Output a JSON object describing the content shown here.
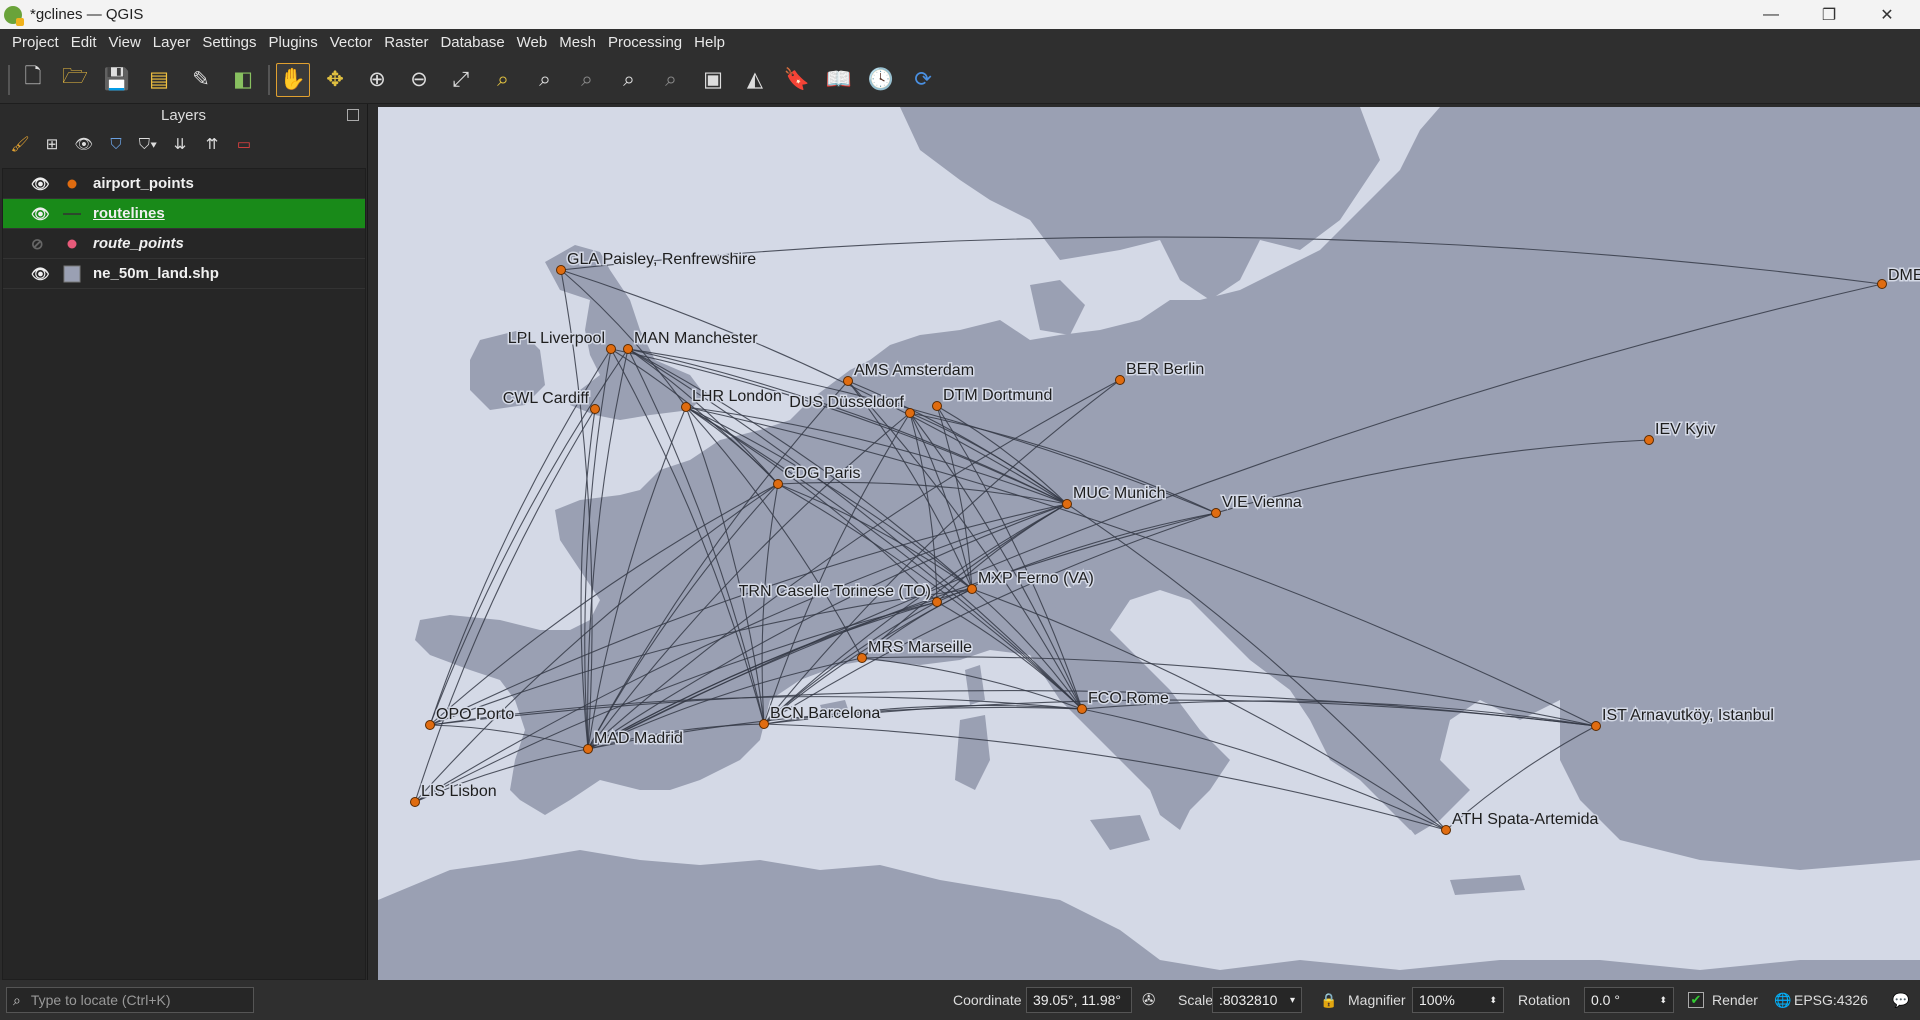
{
  "window": {
    "title": "*gclines — QGIS",
    "minimize": "—",
    "maximize": "❐",
    "close": "✕"
  },
  "menu": [
    "Project",
    "Edit",
    "View",
    "Layer",
    "Settings",
    "Plugins",
    "Vector",
    "Raster",
    "Database",
    "Web",
    "Mesh",
    "Processing",
    "Help"
  ],
  "toolbar": {
    "active_tool": "pan-map"
  },
  "layers_panel": {
    "title": "Layers",
    "layers": [
      {
        "name": "airport_points",
        "visible": true,
        "symbol": "point",
        "color": "#e06c10",
        "selected": false,
        "italic": false
      },
      {
        "name": "routelines",
        "visible": true,
        "symbol": "line",
        "color": "#4a4a4a",
        "selected": true,
        "italic": false
      },
      {
        "name": "route_points",
        "visible": false,
        "symbol": "point",
        "color": "#e85a7a",
        "selected": false,
        "italic": true
      },
      {
        "name": "ne_50m_land.shp",
        "visible": true,
        "symbol": "polygon",
        "color": "#9aa0b3",
        "selected": false,
        "italic": false
      }
    ]
  },
  "map": {
    "water_color": "#d4d9e6",
    "land_color": "#9aa0b3",
    "route_color": "#353a46",
    "airport_color": "#e06c10",
    "airports": [
      "GLA Paisley, Renfrewshire",
      "LPL Liverpool",
      "MAN Manchester",
      "CWL Cardiff",
      "LHR London",
      "AMS Amsterdam",
      "DUS Düsseldorf",
      "DTM Dortmund",
      "BER Berlin",
      "CDG Paris",
      "MUC Munich",
      "VIE Vienna",
      "IEV Kyiv",
      "TRN Caselle Torinese (TO)",
      "MXP Ferno (VA)",
      "MRS Marseille",
      "FCO Rome",
      "IST Arnavutköy, Istanbul",
      "OPO Porto",
      "MAD Madrid",
      "BCN Barcelona",
      "LIS Lisbon",
      "ATH Spata-Artemida",
      "DME"
    ]
  },
  "statusbar": {
    "locate_placeholder": "Type to locate (Ctrl+K)",
    "coordinate_label": "Coordinate",
    "coordinate_value": "39.05°, 11.98°",
    "scale_label": "Scale",
    "scale_value": ":8032810",
    "magnifier_label": "Magnifier",
    "magnifier_value": "100%",
    "rotation_label": "Rotation",
    "rotation_value": "0.0 °",
    "render_label": "Render",
    "render_checked": true,
    "crs": "EPSG:4326"
  }
}
